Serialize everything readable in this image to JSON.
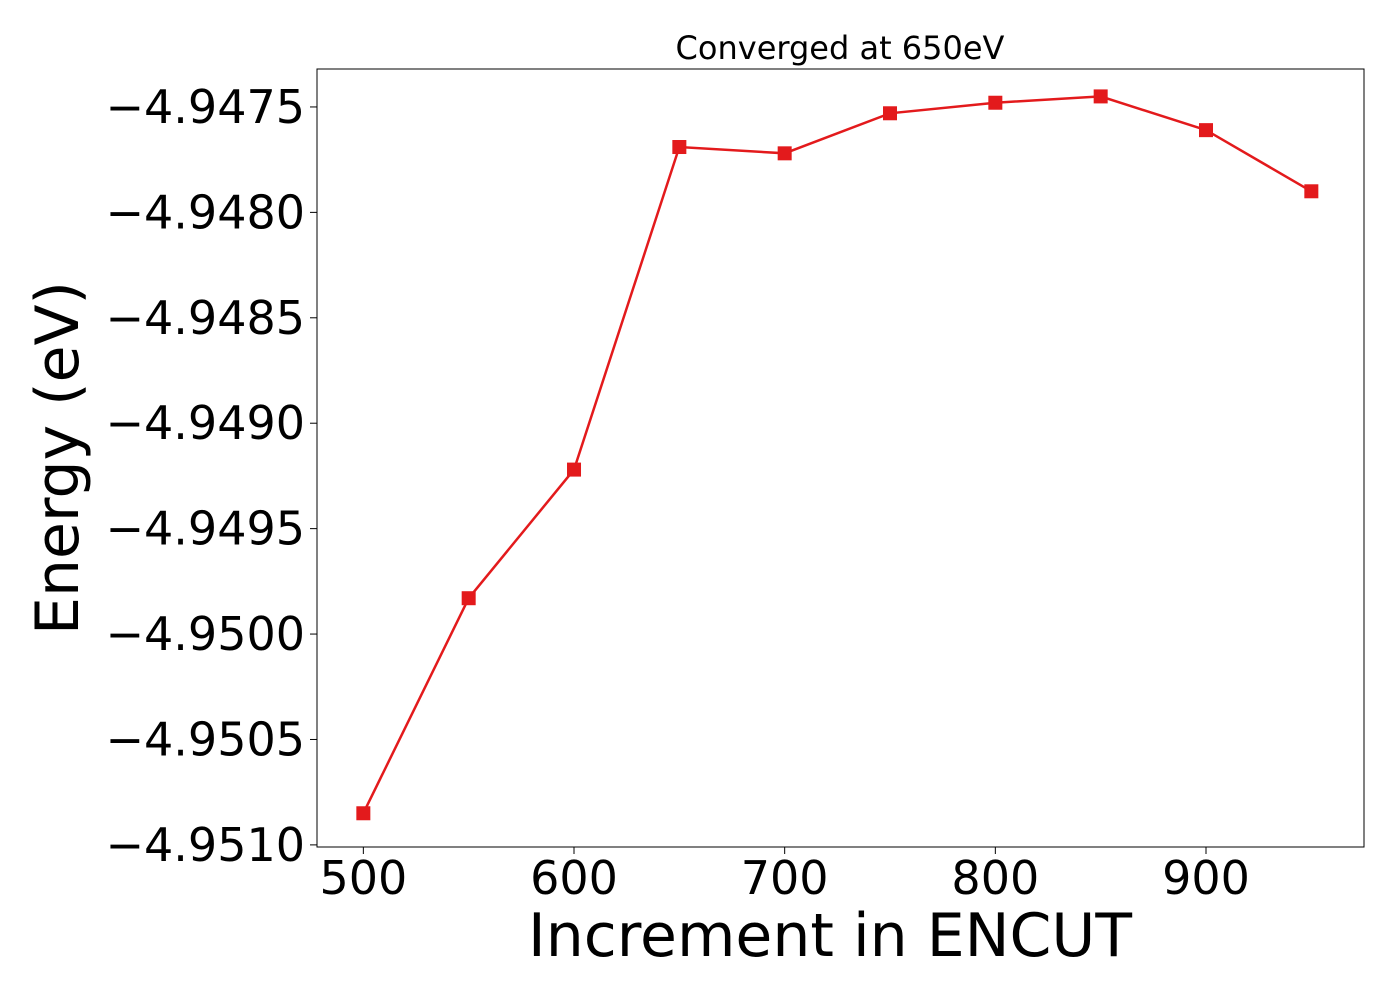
{
  "chart_data": {
    "type": "line",
    "title": "Converged at 650eV",
    "xlabel": "Increment in ENCUT",
    "ylabel": "Energy (eV)",
    "x": [
      500,
      550,
      600,
      650,
      700,
      750,
      800,
      850,
      900,
      950
    ],
    "series": [
      {
        "values": [
          -4.95085,
          -4.94983,
          -4.94922,
          -4.94769,
          -4.94772,
          -4.94753,
          -4.94748,
          -4.94745,
          -4.94761,
          -4.9479
        ],
        "color": "#e31a1c",
        "marker": "square"
      }
    ],
    "xlim": [
      478,
      975
    ],
    "ylim": [
      -4.95101,
      -4.94732
    ],
    "xticks": [
      500,
      600,
      700,
      800,
      900
    ],
    "xtick_labels": [
      "500",
      "600",
      "700",
      "800",
      "900"
    ],
    "yticks": [
      -4.9475,
      -4.948,
      -4.9485,
      -4.949,
      -4.9495,
      -4.95,
      -4.9505,
      -4.951
    ],
    "ytick_labels": [
      "−4.9475",
      "−4.9480",
      "−4.9485",
      "−4.9490",
      "−4.9495",
      "−4.9500",
      "−4.9505",
      "−4.9510"
    ],
    "grid": false,
    "legend": false
  }
}
